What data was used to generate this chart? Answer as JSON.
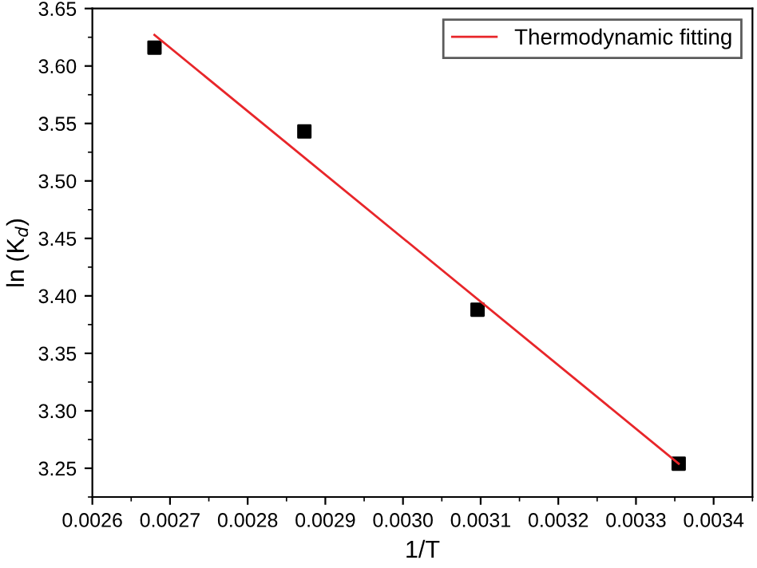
{
  "chart_data": {
    "type": "scatter",
    "xlabel": "1/T",
    "ylabel": "ln (K$_{d}$)",
    "xlim": [
      0.0026,
      0.00345
    ],
    "ylim": [
      3.225,
      3.65
    ],
    "xticks": [
      {
        "value": 0.0026,
        "label": "0.0026"
      },
      {
        "value": 0.0027,
        "label": "0.0027"
      },
      {
        "value": 0.0028,
        "label": "0.0028"
      },
      {
        "value": 0.0029,
        "label": "0.0029"
      },
      {
        "value": 0.003,
        "label": "0.0030"
      },
      {
        "value": 0.0031,
        "label": "0.0031"
      },
      {
        "value": 0.0032,
        "label": "0.0032"
      },
      {
        "value": 0.0033,
        "label": "0.0033"
      },
      {
        "value": 0.0034,
        "label": "0.0034"
      }
    ],
    "yticks": [
      {
        "value": 3.25,
        "label": "3.25"
      },
      {
        "value": 3.3,
        "label": "3.30"
      },
      {
        "value": 3.35,
        "label": "3.35"
      },
      {
        "value": 3.4,
        "label": "3.40"
      },
      {
        "value": 3.45,
        "label": "3.45"
      },
      {
        "value": 3.5,
        "label": "3.50"
      },
      {
        "value": 3.55,
        "label": "3.55"
      },
      {
        "value": 3.6,
        "label": "3.60"
      },
      {
        "value": 3.65,
        "label": "3.65"
      }
    ],
    "legend": "top right",
    "grid": false,
    "series": [
      {
        "color": "#000000",
        "marker": "square",
        "x": [
          0.00268,
          0.002873,
          0.003096,
          0.003355
        ],
        "values": [
          3.616,
          3.543,
          3.388,
          3.254
        ]
      },
      {
        "type": "line",
        "name": "Thermodynamic fitting",
        "color": "#e8262a",
        "marker": "none",
        "line_style": "solid",
        "x": [
          0.00268,
          0.003355
        ],
        "values": [
          3.627,
          3.254
        ]
      }
    ]
  }
}
